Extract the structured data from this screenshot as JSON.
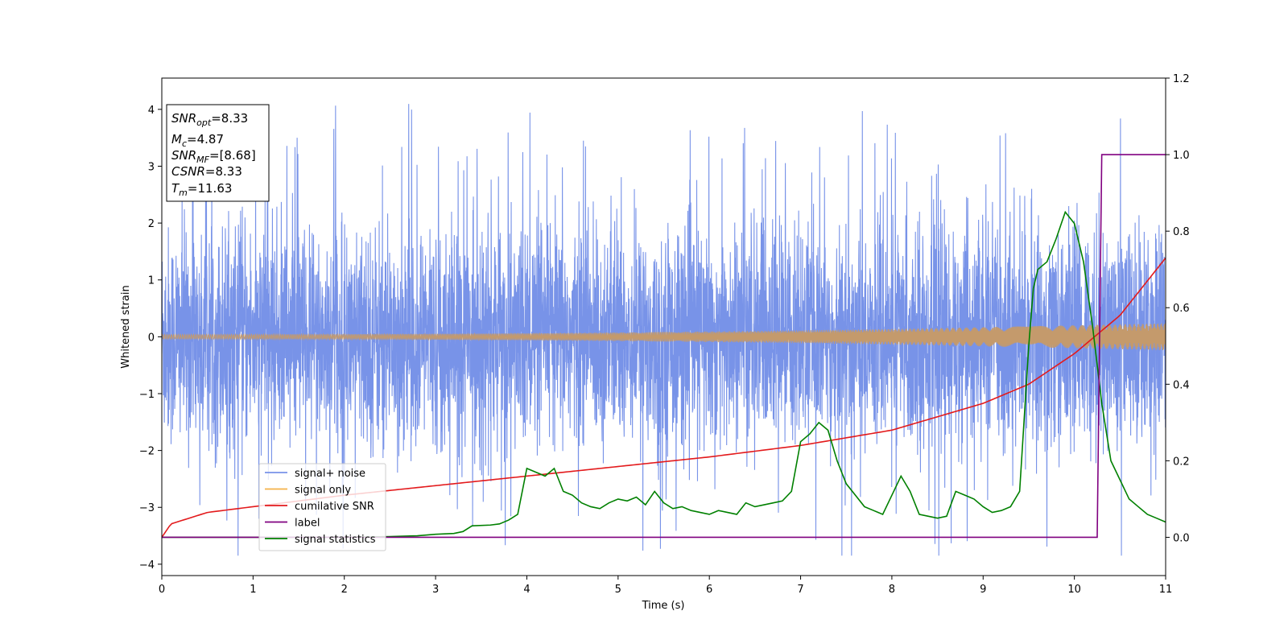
{
  "chart_data": {
    "type": "line",
    "xlabel": "Time (s)",
    "ylabel": "Whitened strain",
    "xlim": [
      0,
      11
    ],
    "ylim_left": [
      -4.2,
      4.55
    ],
    "ylim_right": [
      -0.1,
      1.2
    ],
    "x_ticks": [
      0,
      1,
      2,
      3,
      4,
      5,
      6,
      7,
      8,
      9,
      10,
      11
    ],
    "y_ticks_left": [
      -4,
      -3,
      -2,
      -1,
      0,
      1,
      2,
      3,
      4
    ],
    "y_ticks_right": [
      "0.0",
      "0.2",
      "0.4",
      "0.6",
      "0.8",
      "1.0",
      "1.2"
    ],
    "legend_position": "lower-left",
    "annotation": {
      "snr_opt": "=8.33",
      "mc": "=4.87",
      "snr_mf": "=[8.68]",
      "csnr": "CSNR=8.33",
      "tm": "=11.63"
    },
    "series": [
      {
        "name": "signal+ noise",
        "color": "#7893e8",
        "axis": "left",
        "description_values": "noise band approx std 0.9, spikes up to 4.2 and down to -3.8"
      },
      {
        "name": "signal only",
        "color": "#f5b247",
        "axis": "left",
        "amplitude_start": 0.04,
        "amplitude_end": 0.24
      },
      {
        "name": "cumilative SNR",
        "color": "#e31a1c",
        "axis": "right",
        "x": [
          0,
          0.1,
          0.5,
          1,
          2,
          3,
          4,
          5,
          6,
          7,
          8,
          9,
          9.5,
          10,
          10.5,
          11
        ],
        "y": [
          0.0,
          0.035,
          0.065,
          0.08,
          0.11,
          0.135,
          0.16,
          0.185,
          0.21,
          0.24,
          0.28,
          0.35,
          0.4,
          0.48,
          0.58,
          0.73
        ]
      },
      {
        "name": "label",
        "color": "#800080",
        "axis": "right",
        "x": [
          0,
          10.25,
          10.3,
          11
        ],
        "y": [
          0,
          0,
          1,
          1
        ]
      },
      {
        "name": "signal statistics",
        "color": "#008000",
        "axis": "right",
        "x": [
          0,
          1,
          2,
          2.5,
          2.8,
          3.0,
          3.2,
          3.3,
          3.4,
          3.6,
          3.7,
          3.8,
          3.9,
          4.0,
          4.1,
          4.2,
          4.3,
          4.4,
          4.5,
          4.6,
          4.7,
          4.8,
          4.9,
          5.0,
          5.1,
          5.2,
          5.3,
          5.4,
          5.5,
          5.6,
          5.7,
          5.8,
          5.9,
          6.0,
          6.1,
          6.2,
          6.3,
          6.4,
          6.5,
          6.6,
          6.7,
          6.8,
          6.9,
          7.0,
          7.1,
          7.2,
          7.3,
          7.4,
          7.5,
          7.6,
          7.7,
          7.8,
          7.9,
          8.0,
          8.1,
          8.2,
          8.3,
          8.4,
          8.5,
          8.6,
          8.7,
          8.8,
          8.9,
          9.0,
          9.1,
          9.2,
          9.3,
          9.4,
          9.5,
          9.55,
          9.6,
          9.7,
          9.8,
          9.9,
          10.0,
          10.1,
          10.2,
          10.3,
          10.4,
          10.5,
          10.6,
          10.7,
          10.8,
          10.9,
          11.0
        ],
        "y": [
          0.0,
          0.0,
          0.0,
          0.002,
          0.004,
          0.008,
          0.01,
          0.015,
          0.03,
          0.032,
          0.035,
          0.045,
          0.06,
          0.18,
          0.17,
          0.16,
          0.18,
          0.12,
          0.11,
          0.09,
          0.08,
          0.075,
          0.09,
          0.1,
          0.095,
          0.105,
          0.085,
          0.12,
          0.09,
          0.075,
          0.08,
          0.07,
          0.065,
          0.06,
          0.07,
          0.065,
          0.06,
          0.09,
          0.08,
          0.085,
          0.09,
          0.095,
          0.12,
          0.25,
          0.27,
          0.3,
          0.28,
          0.2,
          0.14,
          0.11,
          0.08,
          0.07,
          0.06,
          0.11,
          0.16,
          0.12,
          0.06,
          0.055,
          0.05,
          0.055,
          0.12,
          0.11,
          0.1,
          0.08,
          0.065,
          0.07,
          0.08,
          0.12,
          0.5,
          0.65,
          0.7,
          0.72,
          0.78,
          0.85,
          0.82,
          0.72,
          0.55,
          0.35,
          0.2,
          0.15,
          0.1,
          0.08,
          0.06,
          0.05,
          0.04
        ]
      }
    ]
  }
}
